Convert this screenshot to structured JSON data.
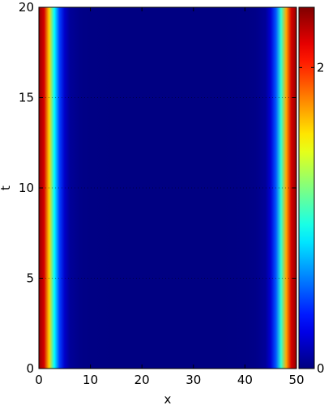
{
  "chart_data": {
    "type": "heatmap",
    "title": "",
    "xlabel": "x",
    "ylabel": "t",
    "xlim": [
      0,
      50
    ],
    "ylim": [
      0,
      20
    ],
    "x_ticks": [
      0,
      10,
      20,
      30,
      40,
      50
    ],
    "x_tick_labels": [
      "0",
      "10",
      "20",
      "30",
      "40",
      "50"
    ],
    "y_ticks": [
      0,
      5,
      10,
      15,
      20
    ],
    "y_tick_labels": [
      "0",
      "5",
      "10",
      "15",
      "20"
    ],
    "colorbar": {
      "colormap": "jet",
      "range": [
        0,
        2.4
      ],
      "ticks": [
        0,
        2
      ],
      "tick_labels": [
        "0",
        "2"
      ]
    },
    "profile_note_free": true,
    "profile": {
      "x": [
        0,
        1,
        2,
        3,
        4,
        5,
        6,
        8,
        10,
        15,
        20,
        25,
        30,
        35,
        40,
        42,
        44,
        45,
        46,
        47,
        48,
        49,
        50
      ],
      "value": [
        2.35,
        2.2,
        1.6,
        0.9,
        0.45,
        0.18,
        0.06,
        0.02,
        0.01,
        0.005,
        0.005,
        0.005,
        0.005,
        0.005,
        0.01,
        0.02,
        0.06,
        0.2,
        0.5,
        1.0,
        1.7,
        2.2,
        2.35
      ]
    },
    "time_invariant": true
  }
}
